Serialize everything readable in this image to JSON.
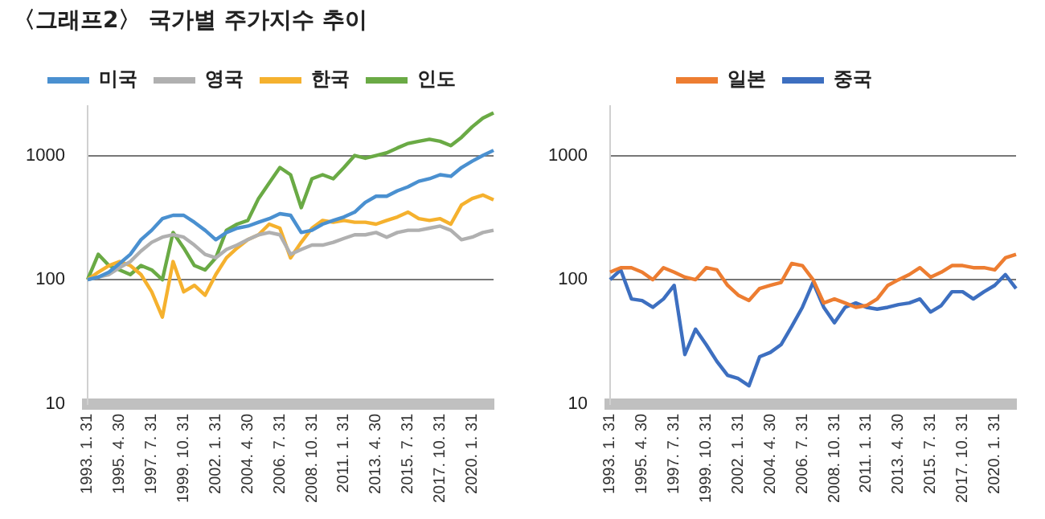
{
  "chart_data": [
    {
      "type": "line",
      "title": "〈그래프2〉 국가별 주가지수 추이",
      "categories": [
        "1993. 1. 31",
        null,
        null,
        "1995. 4. 30",
        null,
        null,
        "1997. 7. 31",
        null,
        null,
        "1999. 10. 31",
        null,
        null,
        "2002. 1. 31",
        null,
        null,
        "2004. 4. 30",
        null,
        null,
        "2006. 7. 31",
        null,
        null,
        "2008. 10. 31",
        null,
        null,
        "2011. 1. 31",
        null,
        null,
        "2013. 4. 30",
        null,
        null,
        "2015. 7. 31",
        null,
        null,
        "2017. 10. 31",
        null,
        null,
        "2020. 1. 31",
        null,
        null
      ],
      "series": [
        {
          "name": "미국",
          "color": "#4a90d0",
          "values": [
            100,
            105,
            115,
            135,
            160,
            210,
            250,
            310,
            330,
            330,
            290,
            250,
            210,
            240,
            260,
            270,
            290,
            310,
            340,
            330,
            240,
            250,
            280,
            300,
            320,
            350,
            420,
            470,
            470,
            520,
            560,
            620,
            650,
            700,
            680,
            800,
            900,
            1000,
            1100
          ]
        },
        {
          "name": "영국",
          "color": "#b0b0b0",
          "values": [
            100,
            105,
            110,
            125,
            140,
            170,
            200,
            220,
            230,
            220,
            190,
            160,
            150,
            175,
            190,
            210,
            230,
            240,
            230,
            160,
            175,
            190,
            190,
            200,
            215,
            230,
            230,
            240,
            220,
            240,
            250,
            250,
            260,
            270,
            250,
            210,
            220,
            240,
            250
          ]
        },
        {
          "name": "한국",
          "color": "#f5b12e",
          "values": [
            100,
            115,
            130,
            140,
            130,
            110,
            80,
            50,
            140,
            80,
            90,
            75,
            110,
            150,
            180,
            210,
            230,
            280,
            260,
            150,
            200,
            260,
            300,
            290,
            300,
            290,
            290,
            280,
            300,
            320,
            350,
            310,
            300,
            310,
            280,
            400,
            450,
            480,
            440
          ]
        },
        {
          "name": "인도",
          "color": "#6aaa45",
          "values": [
            100,
            160,
            130,
            120,
            110,
            130,
            120,
            100,
            240,
            180,
            130,
            120,
            150,
            250,
            280,
            300,
            450,
            600,
            800,
            700,
            380,
            650,
            700,
            650,
            800,
            1000,
            950,
            1000,
            1050,
            1150,
            1250,
            1300,
            1350,
            1300,
            1200,
            1400,
            1700,
            2000,
            2200
          ]
        }
      ],
      "ylim": [
        10,
        2500
      ],
      "yticks": [
        10,
        100,
        1000
      ],
      "log": true,
      "grid": "y",
      "legend": "top",
      "marker": "none"
    },
    {
      "type": "line",
      "categories": [
        "1993. 1. 31",
        null,
        null,
        "1995. 4. 30",
        null,
        null,
        "1997. 7. 31",
        null,
        null,
        "1999. 10. 31",
        null,
        null,
        "2002. 1. 31",
        null,
        null,
        "2004. 4. 30",
        null,
        null,
        "2006. 7. 31",
        null,
        null,
        "2008. 10. 31",
        null,
        null,
        "2011. 1. 31",
        null,
        null,
        "2013. 4. 30",
        null,
        null,
        "2015. 7. 31",
        null,
        null,
        "2017. 10. 31",
        null,
        null,
        "2020. 1. 31",
        null,
        null
      ],
      "series": [
        {
          "name": "일본",
          "color": "#ed7d31",
          "values": [
            115,
            125,
            125,
            115,
            100,
            125,
            115,
            105,
            100,
            125,
            120,
            90,
            75,
            68,
            85,
            90,
            95,
            135,
            130,
            100,
            65,
            70,
            65,
            60,
            62,
            70,
            90,
            100,
            110,
            125,
            105,
            115,
            130,
            130,
            125,
            125,
            120,
            150,
            160
          ]
        },
        {
          "name": "중국",
          "color": "#3d6fc0",
          "values": [
            100,
            120,
            70,
            68,
            60,
            70,
            90,
            25,
            40,
            30,
            22,
            17,
            16,
            14,
            24,
            26,
            30,
            42,
            60,
            95,
            60,
            45,
            60,
            65,
            60,
            58,
            60,
            63,
            65,
            70,
            55,
            62,
            80,
            80,
            70,
            80,
            90,
            110,
            85
          ]
        }
      ],
      "ylim": [
        10,
        2500
      ],
      "yticks": [
        10,
        100,
        1000
      ],
      "log": true,
      "grid": "y",
      "legend": "top",
      "marker": "none"
    }
  ]
}
